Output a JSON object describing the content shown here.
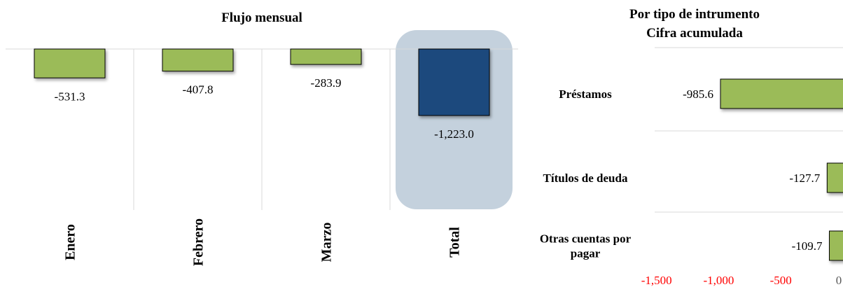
{
  "colors": {
    "bar": "#9bbb59",
    "total": "#1f497d",
    "highlight": "#c4d1dd",
    "grid": "#d9d9d9",
    "tick_negative": "#ff0000",
    "tick_zero": "#595959"
  },
  "chart_data": [
    {
      "type": "bar",
      "orientation": "vertical",
      "title": "Flujo mensual",
      "categories": [
        "Enero",
        "Febrero",
        "Marzo",
        "Total"
      ],
      "values": [
        -531.3,
        -407.8,
        -283.9,
        -1223.0
      ],
      "value_labels": [
        "-531.3",
        "-407.8",
        "-283.9",
        "-1,223.0"
      ],
      "highlighted_category": "Total",
      "grid": true
    },
    {
      "type": "bar",
      "orientation": "horizontal",
      "title": [
        "Por tipo de intrumento",
        "Cifra acumulada"
      ],
      "categories": [
        "Préstamos",
        "Títulos de deuda",
        "Otras cuentas por pagar"
      ],
      "category_lines": [
        [
          "Préstamos"
        ],
        [
          "Títulos de deuda"
        ],
        [
          "Otras cuentas por",
          "pagar"
        ]
      ],
      "values": [
        -985.6,
        -127.7,
        -109.7
      ],
      "value_labels": [
        "-985.6",
        "-127.7",
        "-109.7"
      ],
      "xticks": [
        -1500,
        -1000,
        -500,
        0
      ],
      "xtick_labels": [
        "-1,500",
        "-1,000",
        "-500",
        "0"
      ],
      "xlim": [
        -1500,
        0
      ],
      "grid": true
    }
  ]
}
